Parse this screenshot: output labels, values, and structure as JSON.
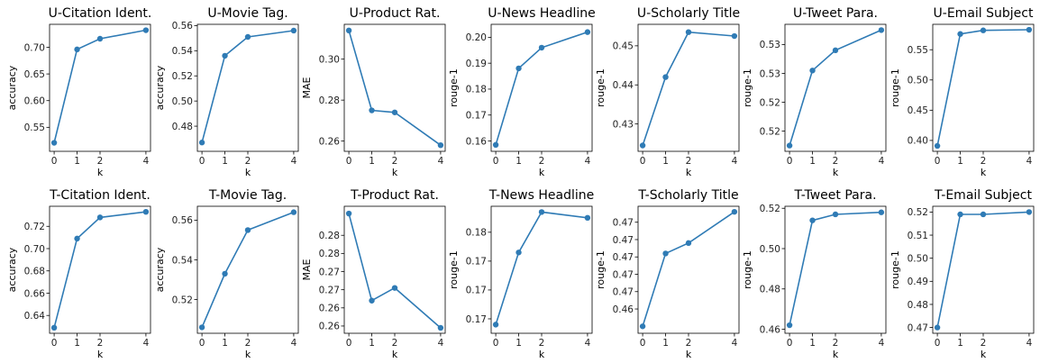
{
  "colors": {
    "series": "#2f7bb5"
  },
  "x_ticks": [
    "0",
    "1",
    "2",
    "4"
  ],
  "chart_data": [
    {
      "type": "line",
      "title": "U-Citation Ident.",
      "xlabel": "k",
      "ylabel": "accuracy",
      "x": [
        0,
        1,
        2,
        4
      ],
      "y": [
        0.521,
        0.696,
        0.716,
        0.732
      ],
      "ylim": [
        0.505,
        0.743
      ],
      "yticks": [
        0.55,
        0.6,
        0.65,
        0.7
      ],
      "ytick_labels": [
        "0.55",
        "0.60",
        "0.65",
        "0.70"
      ]
    },
    {
      "type": "line",
      "title": "U-Movie Tag.",
      "xlabel": "k",
      "ylabel": "accuracy",
      "x": [
        0,
        1,
        2,
        4
      ],
      "y": [
        0.467,
        0.536,
        0.551,
        0.556
      ],
      "ylim": [
        0.46,
        0.561
      ],
      "yticks": [
        0.48,
        0.5,
        0.52,
        0.54,
        0.56
      ],
      "ytick_labels": [
        "0.48",
        "0.50",
        "0.52",
        "0.54",
        "0.56"
      ]
    },
    {
      "type": "line",
      "title": "U-Product Rat.",
      "xlabel": "k",
      "ylabel": "MAE",
      "x": [
        0,
        1,
        2,
        4
      ],
      "y": [
        0.314,
        0.275,
        0.274,
        0.258
      ],
      "ylim": [
        0.255,
        0.317
      ],
      "yticks": [
        0.26,
        0.28,
        0.3
      ],
      "ytick_labels": [
        "0.26",
        "0.28",
        "0.30"
      ]
    },
    {
      "type": "line",
      "title": "U-News Headline",
      "xlabel": "k",
      "ylabel": "rouge-1",
      "x": [
        0,
        1,
        2,
        4
      ],
      "y": [
        0.1585,
        0.188,
        0.196,
        0.202
      ],
      "ylim": [
        0.156,
        0.205
      ],
      "yticks": [
        0.16,
        0.17,
        0.18,
        0.19,
        0.2
      ],
      "ytick_labels": [
        "0.16",
        "0.17",
        "0.18",
        "0.19",
        "0.20"
      ]
    },
    {
      "type": "line",
      "title": "U-Scholarly Title",
      "xlabel": "k",
      "ylabel": "rouge-1",
      "x": [
        0,
        1,
        2,
        4
      ],
      "y": [
        0.4245,
        0.442,
        0.4535,
        0.4525
      ],
      "ylim": [
        0.423,
        0.4555
      ],
      "yticks": [
        0.43,
        0.44,
        0.45
      ],
      "ytick_labels": [
        "0.43",
        "0.44",
        "0.45"
      ]
    },
    {
      "type": "line",
      "title": "U-Tweet Para.",
      "xlabel": "k",
      "ylabel": "rouge-1",
      "x": [
        0,
        1,
        2,
        4
      ],
      "y": [
        0.5125,
        0.5255,
        0.529,
        0.5325
      ],
      "ylim": [
        0.5115,
        0.5335
      ],
      "yticks": [
        0.515,
        0.52,
        0.525,
        0.53
      ],
      "ytick_labels": [
        "0.52",
        "0.52",
        "0.53",
        "0.53"
      ]
    },
    {
      "type": "line",
      "title": "U-Email Subject",
      "xlabel": "k",
      "ylabel": "rouge-1",
      "x": [
        0,
        1,
        2,
        4
      ],
      "y": [
        0.391,
        0.576,
        0.582,
        0.583
      ],
      "ylim": [
        0.382,
        0.592
      ],
      "yticks": [
        0.4,
        0.45,
        0.5,
        0.55
      ],
      "ytick_labels": [
        "0.40",
        "0.45",
        "0.50",
        "0.55"
      ]
    },
    {
      "type": "line",
      "title": "T-Citation Ident.",
      "xlabel": "k",
      "ylabel": "accuracy",
      "x": [
        0,
        1,
        2,
        4
      ],
      "y": [
        0.629,
        0.709,
        0.728,
        0.733
      ],
      "ylim": [
        0.624,
        0.738
      ],
      "yticks": [
        0.64,
        0.66,
        0.68,
        0.7,
        0.72
      ],
      "ytick_labels": [
        "0.64",
        "0.66",
        "0.68",
        "0.70",
        "0.72"
      ]
    },
    {
      "type": "line",
      "title": "T-Movie Tag.",
      "xlabel": "k",
      "ylabel": "accuracy",
      "x": [
        0,
        1,
        2,
        4
      ],
      "y": [
        0.506,
        0.533,
        0.555,
        0.564
      ],
      "ylim": [
        0.503,
        0.567
      ],
      "yticks": [
        0.52,
        0.54,
        0.56
      ],
      "ytick_labels": [
        "0.52",
        "0.54",
        "0.56"
      ]
    },
    {
      "type": "line",
      "title": "T-Product Rat.",
      "xlabel": "k",
      "ylabel": "MAE",
      "x": [
        0,
        1,
        2,
        4
      ],
      "y": [
        0.286,
        0.262,
        0.2655,
        0.2545
      ],
      "ylim": [
        0.253,
        0.288
      ],
      "yticks": [
        0.255,
        0.26,
        0.265,
        0.27,
        0.275,
        0.28
      ],
      "ytick_labels": [
        "0.26",
        "0.26",
        "0.27",
        "0.27",
        "0.28",
        "0.28"
      ]
    },
    {
      "type": "line",
      "title": "T-News Headline",
      "xlabel": "k",
      "ylabel": "rouge-1",
      "x": [
        0,
        1,
        2,
        4
      ],
      "y": [
        0.164,
        0.1765,
        0.1835,
        0.1825
      ],
      "ylim": [
        0.1625,
        0.1845
      ],
      "yticks": [
        0.165,
        0.17,
        0.175,
        0.18
      ],
      "ytick_labels": [
        "0.17",
        "0.17",
        "0.17",
        "0.18"
      ]
    },
    {
      "type": "line",
      "title": "T-Scholarly Title",
      "xlabel": "k",
      "ylabel": "rouge-1",
      "x": [
        0,
        1,
        2,
        4
      ],
      "y": [
        0.46,
        0.4705,
        0.472,
        0.4765
      ],
      "ylim": [
        0.459,
        0.4773
      ],
      "yticks": [
        0.4625,
        0.465,
        0.4675,
        0.47,
        0.4725,
        0.475
      ],
      "ytick_labels": [
        "0.46",
        "0.47",
        "0.47",
        "0.47",
        "0.47",
        "0.47"
      ]
    },
    {
      "type": "line",
      "title": "T-Tweet Para.",
      "xlabel": "k",
      "ylabel": "rouge-1",
      "x": [
        0,
        1,
        2,
        4
      ],
      "y": [
        0.462,
        0.514,
        0.517,
        0.518
      ],
      "ylim": [
        0.458,
        0.521
      ],
      "yticks": [
        0.46,
        0.48,
        0.5,
        0.52
      ],
      "ytick_labels": [
        "0.46",
        "0.48",
        "0.50",
        "0.52"
      ]
    },
    {
      "type": "line",
      "title": "T-Email Subject",
      "xlabel": "k",
      "ylabel": "rouge-1",
      "x": [
        0,
        1,
        2,
        4
      ],
      "y": [
        0.47,
        0.519,
        0.519,
        0.52
      ],
      "ylim": [
        0.4675,
        0.5225
      ],
      "yticks": [
        0.47,
        0.48,
        0.49,
        0.5,
        0.51,
        0.52
      ],
      "ytick_labels": [
        "0.47",
        "0.48",
        "0.49",
        "0.50",
        "0.51",
        "0.52"
      ]
    }
  ]
}
